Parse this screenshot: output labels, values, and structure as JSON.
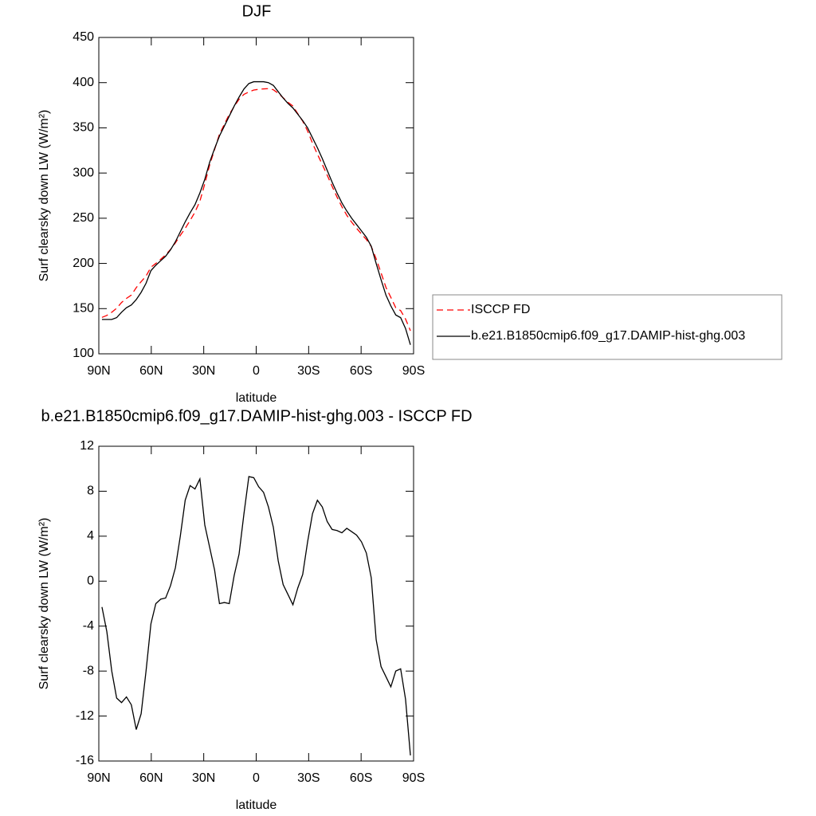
{
  "chart_data": [
    {
      "type": "line",
      "title": "DJF",
      "xlabel": "latitude",
      "ylabel": "Surf clearsky down LW (W/m²)",
      "x": [
        88.2,
        85.4,
        82.6,
        79.8,
        77.0,
        74.2,
        71.4,
        68.6,
        65.8,
        63.0,
        60.2,
        57.4,
        54.6,
        51.8,
        49.0,
        46.2,
        43.4,
        40.6,
        37.8,
        35.0,
        32.2,
        29.4,
        26.6,
        23.8,
        21.0,
        18.2,
        15.4,
        12.6,
        9.8,
        7.0,
        4.2,
        1.4,
        -1.4,
        -4.2,
        -7.0,
        -9.8,
        -12.6,
        -15.4,
        -18.2,
        -21.0,
        -23.8,
        -26.6,
        -29.4,
        -32.2,
        -35.0,
        -37.8,
        -40.6,
        -43.4,
        -46.2,
        -49.0,
        -51.8,
        -54.6,
        -57.4,
        -60.2,
        -63.0,
        -65.8,
        -68.6,
        -71.4,
        -74.2,
        -77.0,
        -79.8,
        -82.6,
        -85.4,
        -88.2
      ],
      "series": [
        {
          "name": "ISCCP FD",
          "color": "#ff0000",
          "linestyle": "dashed",
          "values": [
            140.3,
            142.5,
            146,
            150.4,
            156.8,
            161.3,
            165,
            173.2,
            179.8,
            186,
            195.8,
            200,
            204.6,
            209.5,
            215.4,
            222.8,
            231,
            238.8,
            247.5,
            256.8,
            268.9,
            288,
            309,
            326,
            343,
            353.9,
            365,
            373.5,
            381.6,
            387,
            389.7,
            391.8,
            392.6,
            393.1,
            393.4,
            392.2,
            388.2,
            383.3,
            378.2,
            374.1,
            365.6,
            357.4,
            346.5,
            333,
            320.8,
            309.4,
            297.7,
            285.4,
            273.5,
            262.7,
            253.3,
            245.6,
            238.9,
            232.5,
            226.5,
            218.7,
            205.2,
            189.6,
            173.5,
            162.4,
            151,
            147.8,
            138.5,
            125.5
          ]
        },
        {
          "name": "b.e21.B1850cmip6.f09_g17.DAMIP-hist-ghg.003",
          "color": "#000000",
          "linestyle": "solid",
          "values": [
            138,
            138,
            138,
            140,
            146,
            151,
            154,
            160,
            168,
            178,
            192,
            198,
            203,
            208,
            215,
            224,
            235,
            246,
            256,
            265,
            278,
            293,
            312,
            327,
            341,
            352,
            363,
            374,
            384,
            393,
            399,
            401,
            401,
            401,
            400,
            397,
            390,
            383,
            377,
            372,
            365,
            358,
            350,
            339,
            328,
            316,
            303,
            290,
            278,
            267,
            258,
            250,
            243,
            236,
            229,
            219,
            200,
            182,
            165,
            153,
            143,
            140,
            128,
            110
          ]
        }
      ],
      "xlim": [
        90,
        -90
      ],
      "xticks": [
        {
          "value": 90,
          "label": "90N"
        },
        {
          "value": 60,
          "label": "60N"
        },
        {
          "value": 30,
          "label": "30N"
        },
        0,
        {
          "value": -30,
          "label": "30S"
        },
        {
          "value": -60,
          "label": "60S"
        },
        {
          "value": -90,
          "label": "90S"
        }
      ],
      "ylim": [
        100,
        450
      ],
      "yticks": [
        100,
        150,
        200,
        250,
        300,
        350,
        400,
        450
      ],
      "legend": "right"
    },
    {
      "type": "line",
      "title": "b.e21.B1850cmip6.f09_g17.DAMIP-hist-ghg.003 - ISCCP FD",
      "xlabel": "latitude",
      "ylabel": "Surf clearsky down LW (W/m²)",
      "x": [
        88.2,
        85.4,
        82.6,
        79.8,
        77.0,
        74.2,
        71.4,
        68.6,
        65.8,
        63.0,
        60.2,
        57.4,
        54.6,
        51.8,
        49.0,
        46.2,
        43.4,
        40.6,
        37.8,
        35.0,
        32.2,
        29.4,
        26.6,
        23.8,
        21.0,
        18.2,
        15.4,
        12.6,
        9.8,
        7.0,
        4.2,
        1.4,
        -1.4,
        -4.2,
        -7.0,
        -9.8,
        -12.6,
        -15.4,
        -18.2,
        -21.0,
        -23.8,
        -26.6,
        -29.4,
        -32.2,
        -35.0,
        -37.8,
        -40.6,
        -43.4,
        -46.2,
        -49.0,
        -51.8,
        -54.6,
        -57.4,
        -60.2,
        -63.0,
        -65.8,
        -68.6,
        -71.4,
        -74.2,
        -77.0,
        -79.8,
        -82.6,
        -85.4,
        -88.2
      ],
      "color": "#000000",
      "values": [
        -2.3,
        -4.5,
        -8,
        -10.4,
        -10.8,
        -10.3,
        -11,
        -13.2,
        -11.8,
        -8,
        -3.8,
        -2,
        -1.6,
        -1.5,
        -0.4,
        1.2,
        4,
        7.2,
        8.5,
        8.2,
        9.1,
        5,
        3,
        1,
        -2,
        -1.9,
        -2,
        0.5,
        2.4,
        6,
        9.3,
        9.2,
        8.4,
        7.9,
        6.6,
        4.8,
        1.8,
        -0.3,
        -1.2,
        -2.1,
        -0.6,
        0.6,
        3.5,
        6,
        7.2,
        6.6,
        5.3,
        4.6,
        4.5,
        4.3,
        4.7,
        4.4,
        4.1,
        3.5,
        2.5,
        0.3,
        -5.2,
        -7.6,
        -8.5,
        -9.4,
        -8,
        -7.8,
        -10.5,
        -15.5
      ],
      "xlim": [
        90,
        -90
      ],
      "xticks": [
        {
          "value": 90,
          "label": "90N"
        },
        {
          "value": 60,
          "label": "60N"
        },
        {
          "value": 30,
          "label": "30N"
        },
        0,
        {
          "value": -30,
          "label": "30S"
        },
        {
          "value": -60,
          "label": "60S"
        },
        {
          "value": -90,
          "label": "90S"
        }
      ],
      "ylim": [
        -16,
        12
      ],
      "yticks": [
        -16,
        -12,
        -8,
        -4,
        0,
        4,
        8,
        12
      ]
    }
  ]
}
